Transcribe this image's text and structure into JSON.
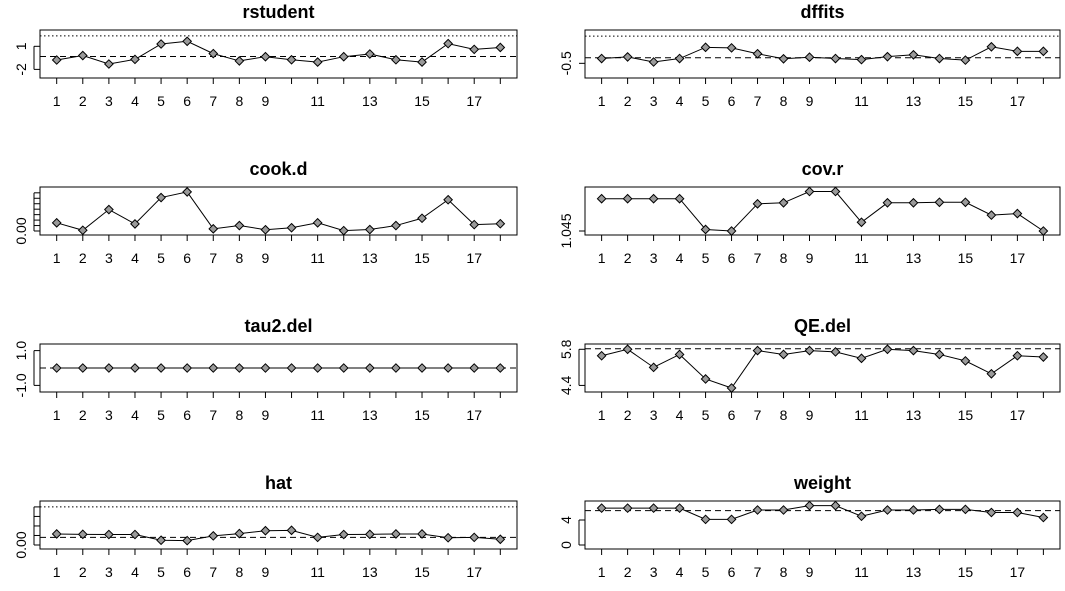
{
  "chart_data": [
    {
      "type": "line",
      "title": "rstudent",
      "x": [
        1,
        2,
        3,
        4,
        5,
        6,
        7,
        8,
        9,
        10,
        11,
        12,
        13,
        14,
        15,
        16,
        17,
        18
      ],
      "x_tick_labels": [
        "1",
        "2",
        "3",
        "4",
        "5",
        "6",
        "7",
        "8",
        "9",
        "11",
        "13",
        "15",
        "17"
      ],
      "values": [
        -0.78,
        -0.2,
        -1.3,
        -0.7,
        1.3,
        1.65,
        0.05,
        -0.9,
        -0.35,
        -0.75,
        -1.05,
        -0.35,
        0,
        -0.75,
        -1.05,
        1.35,
        0.6,
        0.85
      ],
      "ylim": [
        -2.6,
        2.6
      ],
      "y_ticks": [
        -2,
        1
      ],
      "y_tick_labels": [
        "-2",
        "1"
      ],
      "hlines": [
        {
          "y": -0.32,
          "style": "dashed"
        },
        {
          "y": 2.35,
          "style": "dotted"
        }
      ]
    },
    {
      "type": "line",
      "title": "dffits",
      "x": [
        1,
        2,
        3,
        4,
        5,
        6,
        7,
        8,
        9,
        10,
        11,
        12,
        13,
        14,
        15,
        16,
        17,
        18
      ],
      "x_tick_labels": [
        "1",
        "2",
        "3",
        "4",
        "5",
        "6",
        "7",
        "8",
        "9",
        "11",
        "13",
        "15",
        "17"
      ],
      "values": [
        -0.32,
        -0.26,
        -0.45,
        -0.32,
        0.1,
        0.08,
        -0.14,
        -0.33,
        -0.27,
        -0.32,
        -0.36,
        -0.25,
        -0.18,
        -0.32,
        -0.38,
        0.12,
        -0.05,
        -0.05
      ],
      "ylim": [
        -0.9,
        0.6
      ],
      "y_ticks": [
        -0.5
      ],
      "y_tick_labels": [
        "-0.5"
      ],
      "hlines": [
        {
          "y": -0.29,
          "style": "dashed"
        },
        {
          "y": 0.52,
          "style": "dotted"
        }
      ]
    },
    {
      "type": "line",
      "title": "cook.d",
      "x": [
        1,
        2,
        3,
        4,
        5,
        6,
        7,
        8,
        9,
        10,
        11,
        12,
        13,
        14,
        15,
        16,
        17,
        18
      ],
      "x_tick_labels": [
        "1",
        "2",
        "3",
        "4",
        "5",
        "6",
        "7",
        "8",
        "9",
        "11",
        "13",
        "15",
        "17"
      ],
      "values": [
        0.045,
        0.004,
        0.118,
        0.039,
        0.184,
        0.215,
        0.012,
        0.03,
        0.007,
        0.018,
        0.045,
        0.002,
        0.008,
        0.03,
        0.07,
        0.172,
        0.035,
        0.04
      ],
      "ylim": [
        0,
        0.22
      ],
      "y_ticks": [
        0,
        0.03,
        0.06,
        0.09,
        0.12,
        0.15,
        0.18,
        0.21
      ],
      "y_tick_labels": [
        "0.00"
      ],
      "hlines": []
    },
    {
      "type": "line",
      "title": "cov.r",
      "x": [
        1,
        2,
        3,
        4,
        5,
        6,
        7,
        8,
        9,
        10,
        11,
        12,
        13,
        14,
        15,
        16,
        17,
        18
      ],
      "x_tick_labels": [
        "1",
        "2",
        "3",
        "4",
        "5",
        "6",
        "7",
        "8",
        "9",
        "11",
        "13",
        "15",
        "17"
      ],
      "values": [
        1.108,
        1.108,
        1.108,
        1.108,
        1.048,
        1.045,
        1.098,
        1.1,
        1.122,
        1.122,
        1.062,
        1.1,
        1.1,
        1.101,
        1.101,
        1.076,
        1.079,
        1.045
      ],
      "ylim": [
        1.045,
        1.123
      ],
      "y_ticks": [
        1.045
      ],
      "y_tick_labels": [
        "1.045"
      ],
      "hlines": []
    },
    {
      "type": "line",
      "title": "tau2.del",
      "x": [
        1,
        2,
        3,
        4,
        5,
        6,
        7,
        8,
        9,
        10,
        11,
        12,
        13,
        14,
        15,
        16,
        17,
        18
      ],
      "x_tick_labels": [
        "1",
        "2",
        "3",
        "4",
        "5",
        "6",
        "7",
        "8",
        "9",
        "11",
        "13",
        "15",
        "17"
      ],
      "values": [
        0,
        0,
        0,
        0,
        0,
        0,
        0,
        0,
        0,
        0,
        0,
        0,
        0,
        0,
        0,
        0,
        0,
        0
      ],
      "ylim": [
        -1.15,
        1.15
      ],
      "y_ticks": [
        -1,
        1
      ],
      "y_tick_labels": [
        "-1.0",
        "1.0"
      ],
      "hlines": [
        {
          "y": 0,
          "style": "dashed"
        }
      ]
    },
    {
      "type": "line",
      "title": "QE.del",
      "x": [
        1,
        2,
        3,
        4,
        5,
        6,
        7,
        8,
        9,
        10,
        11,
        12,
        13,
        14,
        15,
        16,
        17,
        18
      ],
      "x_tick_labels": [
        "1",
        "2",
        "3",
        "4",
        "5",
        "6",
        "7",
        "8",
        "9",
        "11",
        "13",
        "15",
        "17"
      ],
      "values": [
        5.55,
        5.8,
        5.1,
        5.6,
        4.65,
        4.3,
        5.75,
        5.6,
        5.75,
        5.7,
        5.45,
        5.8,
        5.75,
        5.6,
        5.35,
        4.85,
        5.55,
        5.5
      ],
      "ylim": [
        4.3,
        5.85
      ],
      "y_ticks": [
        4.4,
        5.8
      ],
      "y_tick_labels": [
        "4.4",
        "5.8"
      ],
      "hlines": [
        {
          "y": 5.82,
          "style": "dashed"
        }
      ]
    },
    {
      "type": "line",
      "title": "hat",
      "x": [
        1,
        2,
        3,
        4,
        5,
        6,
        7,
        8,
        9,
        10,
        11,
        12,
        13,
        14,
        15,
        16,
        17,
        18
      ],
      "x_tick_labels": [
        "1",
        "2",
        "3",
        "4",
        "5",
        "6",
        "7",
        "8",
        "9",
        "11",
        "13",
        "15",
        "17"
      ],
      "values": [
        0.058,
        0.056,
        0.055,
        0.055,
        0.025,
        0.023,
        0.048,
        0.06,
        0.075,
        0.077,
        0.04,
        0.055,
        0.056,
        0.058,
        0.058,
        0.038,
        0.04,
        0.03
      ],
      "ylim": [
        0,
        0.21
      ],
      "y_ticks": [
        0,
        0.05,
        0.1,
        0.15,
        0.2
      ],
      "y_tick_labels": [
        "0.00"
      ],
      "hlines": [
        {
          "y": 0.04,
          "style": "dashed"
        },
        {
          "y": 0.2,
          "style": "dotted"
        }
      ]
    },
    {
      "type": "line",
      "title": "weight",
      "x": [
        1,
        2,
        3,
        4,
        5,
        6,
        7,
        8,
        9,
        10,
        11,
        12,
        13,
        14,
        15,
        16,
        17,
        18
      ],
      "x_tick_labels": [
        "1",
        "2",
        "3",
        "4",
        "5",
        "6",
        "7",
        "8",
        "9",
        "11",
        "13",
        "15",
        "17"
      ],
      "values": [
        5.9,
        5.9,
        5.9,
        5.9,
        4.1,
        4.1,
        5.6,
        5.6,
        6.3,
        6.3,
        4.6,
        5.6,
        5.6,
        5.7,
        5.7,
        5.2,
        5.2,
        4.4
      ],
      "ylim": [
        0,
        6.4
      ],
      "y_ticks": [
        0,
        4
      ],
      "y_tick_labels": [
        "0",
        "4"
      ],
      "hlines": [
        {
          "y": 5.5,
          "style": "dashed"
        }
      ]
    }
  ]
}
